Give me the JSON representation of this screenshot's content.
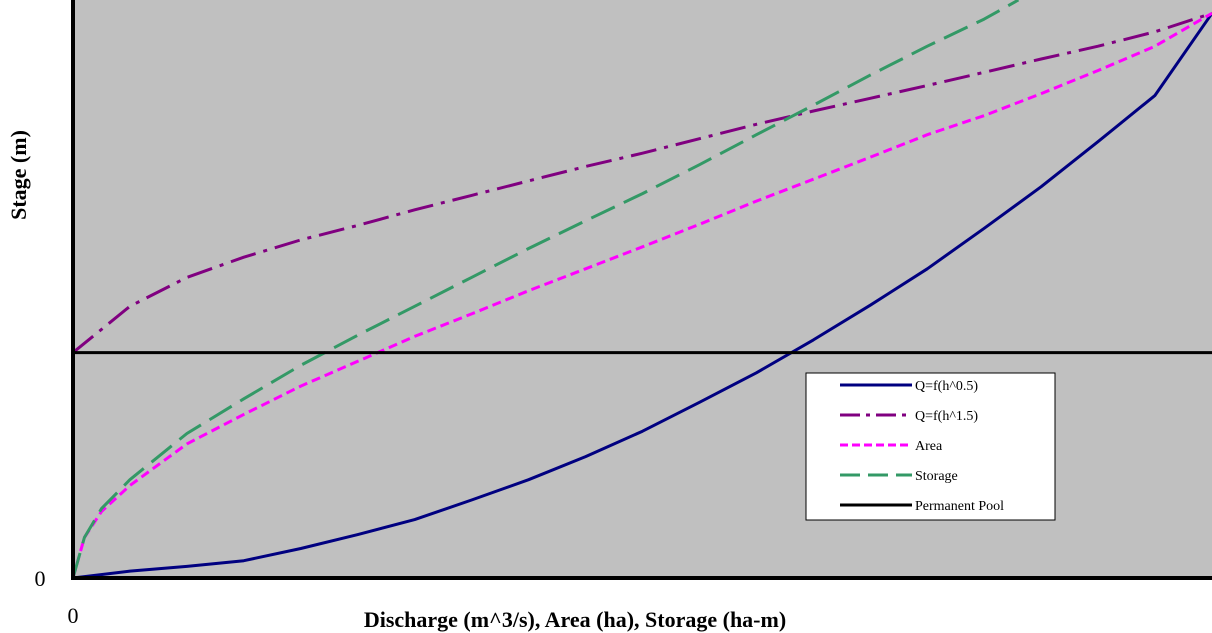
{
  "chart_data": {
    "type": "line",
    "title": "",
    "xlabel": "Discharge (m^3/s), Area (ha), Storage (ha-m)",
    "ylabel": "Stage (m)",
    "x_tick_label": "0",
    "y_tick_label": "0",
    "xlim": [
      0,
      1
    ],
    "ylim": [
      0,
      1
    ],
    "grid": false,
    "legend_position": "center-right",
    "plot_background": "#c0c0c0",
    "series": [
      {
        "name": "Q=f(h^0.5)",
        "color": "#000080",
        "dash": "solid",
        "x": [
          0,
          0.05,
          0.1,
          0.15,
          0.2,
          0.25,
          0.3,
          0.35,
          0.4,
          0.45,
          0.5,
          0.55,
          0.6,
          0.65,
          0.7,
          0.75,
          0.8,
          0.85,
          0.9,
          0.95,
          1.0
        ],
        "y": [
          0,
          0.012,
          0.02,
          0.03,
          0.051,
          0.075,
          0.101,
          0.135,
          0.17,
          0.21,
          0.254,
          0.304,
          0.355,
          0.412,
          0.472,
          0.535,
          0.605,
          0.677,
          0.755,
          0.835,
          0.977
        ]
      },
      {
        "name": "Q=f(h^1.5)",
        "color": "#800080",
        "dash": "dashdot",
        "x": [
          0,
          0.05,
          0.1,
          0.15,
          0.2,
          0.25,
          0.3,
          0.35,
          0.4,
          0.45,
          0.5,
          0.55,
          0.6,
          0.65,
          0.7,
          0.75,
          0.8,
          0.85,
          0.9,
          0.95,
          1.0
        ],
        "y": [
          0.39,
          0.47,
          0.52,
          0.555,
          0.585,
          0.61,
          0.637,
          0.662,
          0.687,
          0.712,
          0.735,
          0.76,
          0.785,
          0.808,
          0.83,
          0.852,
          0.875,
          0.898,
          0.92,
          0.945,
          0.977
        ]
      },
      {
        "name": "Area",
        "color": "#ff00ff",
        "dash": "dotted",
        "x": [
          0,
          0.01,
          0.025,
          0.05,
          0.1,
          0.15,
          0.2,
          0.25,
          0.3,
          0.35,
          0.4,
          0.45,
          0.5,
          0.55,
          0.6,
          0.65,
          0.7,
          0.75,
          0.8,
          0.85,
          0.9,
          0.95,
          1.0
        ],
        "y": [
          0,
          0.07,
          0.115,
          0.16,
          0.232,
          0.283,
          0.332,
          0.375,
          0.418,
          0.457,
          0.497,
          0.535,
          0.573,
          0.612,
          0.652,
          0.69,
          0.728,
          0.767,
          0.8,
          0.838,
          0.878,
          0.92,
          0.977
        ]
      },
      {
        "name": "Storage",
        "color": "#339966",
        "dash": "dashed",
        "x": [
          0,
          0.01,
          0.025,
          0.05,
          0.1,
          0.15,
          0.2,
          0.25,
          0.3,
          0.35,
          0.4,
          0.45,
          0.5,
          0.55,
          0.6,
          0.65,
          0.7,
          0.75,
          0.8,
          0.83
        ],
        "y": [
          0,
          0.07,
          0.12,
          0.17,
          0.25,
          0.31,
          0.368,
          0.42,
          0.47,
          0.52,
          0.57,
          0.618,
          0.665,
          0.715,
          0.767,
          0.818,
          0.87,
          0.92,
          0.967,
          1.0
        ]
      },
      {
        "name": "Permanent Pool",
        "color": "#000000",
        "dash": "solid",
        "x": [
          0,
          1.0
        ],
        "y": [
          0.39,
          0.39
        ]
      }
    ]
  }
}
